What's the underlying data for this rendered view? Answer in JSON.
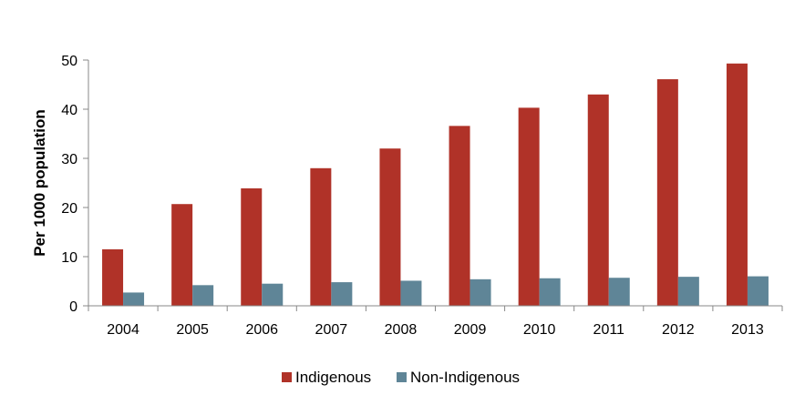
{
  "chart_data": {
    "type": "bar",
    "categories": [
      "2004",
      "2005",
      "2006",
      "2007",
      "2008",
      "2009",
      "2010",
      "2011",
      "2012",
      "2013"
    ],
    "series": [
      {
        "name": "Indigenous",
        "color": "#b03228",
        "values": [
          11.5,
          20.7,
          23.9,
          28.0,
          32.0,
          36.6,
          40.3,
          43.0,
          46.1,
          49.3
        ]
      },
      {
        "name": "Non-Indigenous",
        "color": "#5f8597",
        "values": [
          2.7,
          4.2,
          4.5,
          4.8,
          5.1,
          5.4,
          5.6,
          5.7,
          5.9,
          6.0
        ]
      }
    ],
    "ylabel": "Per 1000 population",
    "xlabel": "",
    "ylim": [
      0,
      50
    ],
    "yticks": [
      0,
      10,
      20,
      30,
      40,
      50
    ],
    "grid": false,
    "legend": "bottom-center"
  }
}
